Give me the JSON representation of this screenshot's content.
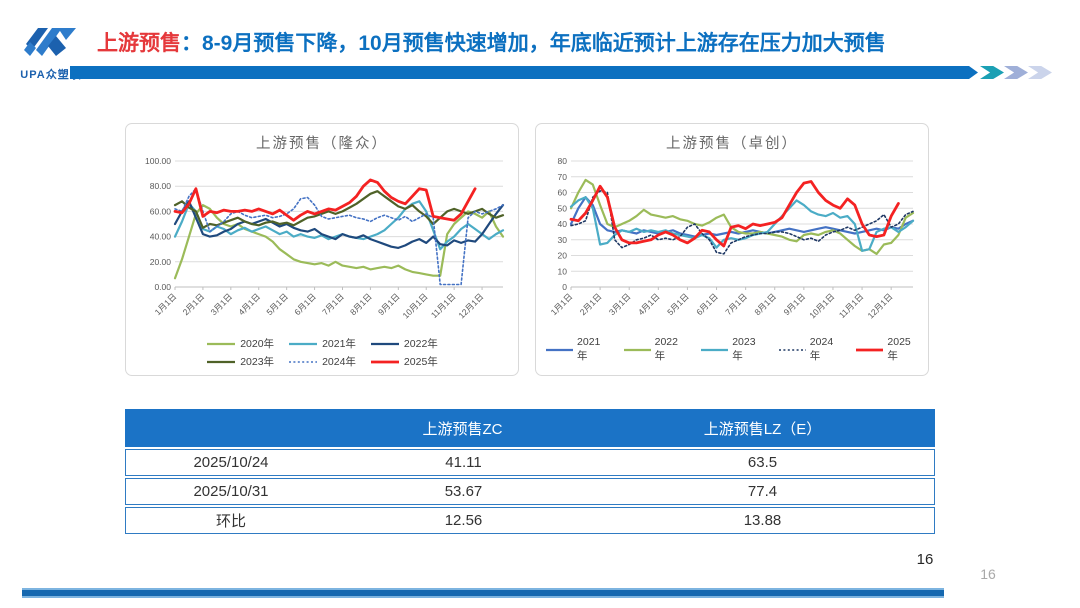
{
  "header": {
    "logo_text": "UPA众塑联",
    "title_red": "上游预售",
    "title_blue": "：8-9月预售下降，10月预售快速增加，年底临近预计上游存在压力加大预售",
    "bar_color": "#0c70c0",
    "chevron_colors": [
      "#1ba0b4",
      "#9fafd8",
      "#cbd4eb"
    ]
  },
  "chart_data": [
    {
      "type": "line",
      "title": "上游预售（隆众）",
      "x_tick_labels": [
        "1月1日",
        "2月1日",
        "3月1日",
        "4月1日",
        "5月1日",
        "6月1日",
        "7月1日",
        "8月1日",
        "9月1日",
        "10月1日",
        "11月1日",
        "12月1日"
      ],
      "ylim": [
        0,
        100
      ],
      "yticks": [
        "0.00",
        "20.00",
        "40.00",
        "60.00",
        "80.00",
        "100.00"
      ],
      "grid": true,
      "legend_position": "bottom",
      "legend_rows": [
        [
          "2020年",
          "2021年",
          "2022年"
        ],
        [
          "2023年",
          "2024年",
          "2025年"
        ]
      ],
      "mleft": 40,
      "series": [
        {
          "name": "2020年",
          "color": "#9bbb59",
          "dashed": false,
          "width": 2.2,
          "values": [
            7,
            22,
            40,
            58,
            65,
            62,
            55,
            50,
            48,
            50,
            46,
            44,
            42,
            40,
            36,
            30,
            26,
            22,
            20,
            19,
            18,
            19,
            17,
            20,
            17,
            16,
            15,
            16,
            14,
            15,
            16,
            15,
            17,
            14,
            12,
            11,
            10,
            9,
            9,
            42,
            50,
            55,
            60,
            58,
            55,
            60,
            48,
            40
          ]
        },
        {
          "name": "2021年",
          "color": "#4bacc6",
          "dashed": false,
          "width": 2.2,
          "values": [
            40,
            52,
            66,
            60,
            46,
            44,
            48,
            46,
            42,
            45,
            47,
            44,
            46,
            48,
            45,
            42,
            44,
            40,
            42,
            40,
            39,
            41,
            38,
            40,
            42,
            40,
            39,
            38,
            40,
            42,
            45,
            50,
            55,
            62,
            66,
            68,
            60,
            45,
            30,
            36,
            40,
            46,
            50,
            46,
            42,
            38,
            42,
            45
          ]
        },
        {
          "name": "2022年",
          "color": "#1f497d",
          "dashed": false,
          "width": 2.2,
          "values": [
            50,
            60,
            68,
            55,
            42,
            40,
            41,
            44,
            46,
            50,
            52,
            50,
            52,
            54,
            51,
            48,
            50,
            47,
            45,
            44,
            46,
            42,
            40,
            38,
            42,
            40,
            39,
            41,
            38,
            36,
            34,
            32,
            31,
            33,
            36,
            38,
            35,
            40,
            34,
            33,
            37,
            35,
            37,
            36,
            42,
            50,
            58,
            65
          ]
        },
        {
          "name": "2023年",
          "color": "#4f6228",
          "dashed": false,
          "width": 2.2,
          "values": [
            65,
            68,
            63,
            60,
            47,
            50,
            49,
            51,
            53,
            55,
            52,
            50,
            49,
            51,
            52,
            50,
            51,
            49,
            52,
            55,
            56,
            58,
            60,
            58,
            60,
            63,
            66,
            70,
            74,
            76,
            72,
            68,
            64,
            62,
            65,
            60,
            56,
            50,
            55,
            60,
            62,
            60,
            58,
            60,
            62,
            58,
            55,
            57
          ]
        },
        {
          "name": "2024年",
          "color": "#4472c4",
          "dashed": true,
          "width": 1.6,
          "values": [
            62,
            60,
            72,
            78,
            60,
            44,
            48,
            52,
            58,
            60,
            57,
            55,
            56,
            57,
            55,
            56,
            58,
            62,
            70,
            71,
            65,
            56,
            54,
            55,
            56,
            57,
            55,
            54,
            52,
            55,
            57,
            55,
            53,
            56,
            52,
            55,
            58,
            55,
            2,
            2,
            2,
            2,
            55,
            60,
            58,
            60,
            62,
            65
          ]
        },
        {
          "name": "2025年",
          "color": "#f42222",
          "dashed": false,
          "width": 2.8,
          "values": [
            60,
            59,
            66,
            78,
            56,
            60,
            59,
            61,
            60,
            60,
            61,
            60,
            62,
            60,
            58,
            61,
            57,
            53,
            57,
            60,
            58,
            60,
            62,
            61,
            64,
            67,
            72,
            80,
            85,
            83,
            76,
            71,
            68,
            66,
            72,
            78,
            77,
            56,
            55,
            54,
            53,
            58,
            68,
            78,
            null,
            null,
            null,
            null
          ]
        }
      ]
    },
    {
      "type": "line",
      "title": "上游预售（卓创）",
      "x_tick_labels": [
        "1月1日",
        "2月1日",
        "3月1日",
        "4月1日",
        "5月1日",
        "6月1日",
        "7月1日",
        "8月1日",
        "9月1日",
        "10月1日",
        "11月1日",
        "12月1日"
      ],
      "ylim": [
        0,
        80
      ],
      "yticks": [
        "0",
        "10",
        "20",
        "30",
        "40",
        "50",
        "60",
        "70",
        "80"
      ],
      "grid": true,
      "legend_position": "bottom",
      "legend_rows": [
        [
          "2021年",
          "2022年",
          "2023年",
          "2024年",
          "2025年"
        ]
      ],
      "mleft": 26,
      "series": [
        {
          "name": "2021年",
          "color": "#4472c4",
          "dashed": false,
          "width": 2.2,
          "values": [
            40,
            50,
            57,
            52,
            40,
            36,
            35,
            36,
            35,
            34,
            36,
            35,
            34,
            35,
            36,
            34,
            33,
            32,
            33,
            34,
            33,
            34,
            35,
            34,
            35,
            36,
            35,
            34,
            35,
            36,
            37,
            36,
            35,
            36,
            37,
            38,
            37,
            36,
            35,
            34,
            35,
            36,
            37,
            36,
            38,
            37,
            40,
            42
          ]
        },
        {
          "name": "2022年",
          "color": "#9bbb59",
          "dashed": false,
          "width": 2.2,
          "values": [
            50,
            60,
            68,
            65,
            52,
            40,
            38,
            40,
            42,
            45,
            49,
            46,
            45,
            44,
            45,
            43,
            42,
            40,
            39,
            41,
            44,
            46,
            38,
            35,
            34,
            34,
            35,
            34,
            33,
            32,
            30,
            29,
            33,
            34,
            33,
            35,
            36,
            34,
            30,
            26,
            23,
            24,
            21,
            27,
            28,
            33,
            44,
            47
          ]
        },
        {
          "name": "2023年",
          "color": "#4bacc6",
          "dashed": false,
          "width": 2.2,
          "values": [
            51,
            55,
            57,
            50,
            27,
            28,
            33,
            36,
            35,
            37,
            35,
            36,
            35,
            36,
            34,
            33,
            32,
            31,
            33,
            31,
            25,
            30,
            31,
            30,
            31,
            33,
            34,
            35,
            40,
            45,
            50,
            55,
            52,
            48,
            46,
            45,
            47,
            44,
            45,
            40,
            23,
            24,
            35,
            37,
            38,
            35,
            38,
            42
          ]
        },
        {
          "name": "2024年",
          "color": "#1f3864",
          "dashed": true,
          "width": 1.6,
          "values": [
            39,
            40,
            42,
            57,
            61,
            60,
            30,
            25,
            27,
            30,
            31,
            33,
            30,
            31,
            30,
            32,
            38,
            40,
            34,
            30,
            22,
            21,
            28,
            30,
            32,
            33,
            34,
            34,
            35,
            35,
            34,
            32,
            30,
            31,
            29,
            33,
            35,
            36,
            38,
            36,
            38,
            40,
            42,
            46,
            38,
            40,
            46,
            48
          ]
        },
        {
          "name": "2025年",
          "color": "#f42222",
          "dashed": false,
          "width": 2.8,
          "values": [
            43,
            42,
            47,
            55,
            64,
            57,
            38,
            30,
            28,
            28,
            29,
            30,
            33,
            35,
            33,
            30,
            28,
            31,
            36,
            35,
            30,
            26,
            38,
            39,
            37,
            40,
            39,
            40,
            41,
            44,
            52,
            60,
            66,
            67,
            60,
            55,
            52,
            50,
            56,
            52,
            40,
            33,
            32,
            33,
            45,
            53,
            null,
            null
          ]
        }
      ]
    }
  ],
  "table": {
    "header": [
      "",
      "上游预售ZC",
      "上游预售LZ（E）"
    ],
    "rows": [
      [
        "2025/10/24",
        "41.11",
        "63.5"
      ],
      [
        "2025/10/31",
        "53.67",
        "77.4"
      ],
      [
        "环比",
        "12.56",
        "13.88"
      ]
    ]
  },
  "footer": {
    "page_number": "16",
    "page_number_ghost": "16"
  }
}
